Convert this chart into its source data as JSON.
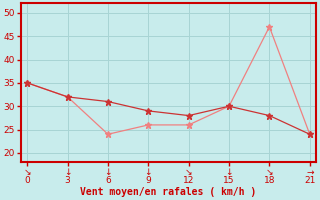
{
  "x": [
    0,
    3,
    6,
    9,
    12,
    15,
    18,
    21
  ],
  "y_rafales": [
    35,
    32,
    24,
    26,
    26,
    30,
    47,
    24
  ],
  "y_moyen": [
    35,
    32,
    31,
    29,
    28,
    30,
    28,
    24
  ],
  "color_rafales": "#f08080",
  "color_moyen": "#cc3333",
  "xlabel": "Vent moyen/en rafales ( km/h )",
  "xlabel_color": "#cc0000",
  "bg_color": "#c8ecec",
  "grid_color": "#a8d4d4",
  "axis_color": "#cc0000",
  "tick_color": "#cc0000",
  "ylim": [
    18,
    52
  ],
  "xlim": [
    -0.5,
    21.5
  ],
  "yticks": [
    20,
    25,
    30,
    35,
    40,
    45,
    50
  ],
  "xticks": [
    0,
    3,
    6,
    9,
    12,
    15,
    18,
    21
  ],
  "wind_arrows": [
    "↘",
    "↓",
    "↓",
    "↓",
    "↘",
    "↓",
    "↘",
    "→"
  ]
}
